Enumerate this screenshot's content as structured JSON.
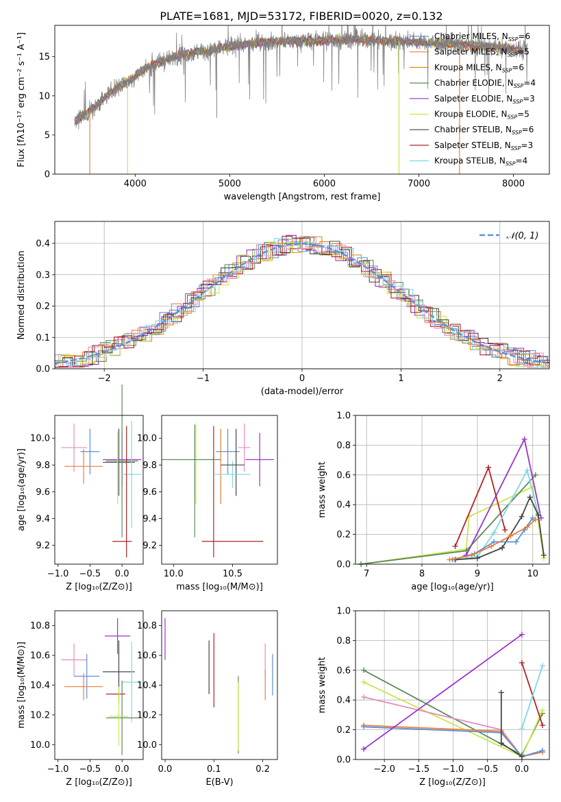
{
  "title": "PLATE=1681, MJD=53172, FIBERID=0020, z=0.132",
  "colors": {
    "Chabrier MILES": "#5b8fd9",
    "Salpeter MILES": "#ee7d37",
    "Kroupa MILES": "#d98f1d",
    "Chabrier ELODIE": "#5a8a5a",
    "Salpeter ELODIE": "#9932cc",
    "Kroupa ELODIE": "#c8e64a",
    "Chabrier STELIB": "#444444",
    "Salpeter STELIB": "#b22222",
    "Kroupa STELIB": "#7fd7e6",
    "extra": "#e48cc0",
    "normal_curve": "#5b8fd9"
  },
  "chart_data": [
    {
      "id": "spectrum",
      "type": "line",
      "title": "PLATE=1681, MJD=53172, FIBERID=0020, z=0.132",
      "xlabel": "wavelength [Angstrom, rest frame]",
      "ylabel": "Flux [fλ10⁻¹⁷ erg cm⁻² s⁻¹ A⁻¹]",
      "xlim": [
        3150,
        8380
      ],
      "ylim": [
        0,
        19
      ],
      "xticks": [
        4000,
        5000,
        6000,
        7000,
        8000
      ],
      "yticks": [
        0,
        5,
        10,
        15
      ],
      "legend_position": "top-right",
      "legend": [
        {
          "name": "Chabrier MILES",
          "nssp": "6"
        },
        {
          "name": "Salpeter MILES",
          "nssp": "5"
        },
        {
          "name": "Kroupa MILES",
          "nssp": "6"
        },
        {
          "name": "Chabrier ELODIE",
          "nssp": "4"
        },
        {
          "name": "Salpeter ELODIE",
          "nssp": "3"
        },
        {
          "name": "Kroupa ELODIE",
          "nssp": "5"
        },
        {
          "name": "Chabrier STELIB",
          "nssp": "6"
        },
        {
          "name": "Salpeter STELIB",
          "nssp": "3"
        },
        {
          "name": "Kroupa STELIB",
          "nssp": "4"
        }
      ],
      "envelope": {
        "x": [
          3360,
          3500,
          3650,
          3800,
          3950,
          4100,
          4300,
          4500,
          4800,
          5100,
          5500,
          5900,
          6300,
          6700,
          7100,
          7500,
          8000,
          8100
        ],
        "y": [
          6.8,
          7.8,
          9.5,
          11.0,
          12.0,
          13.5,
          14.5,
          15.3,
          15.8,
          16.5,
          17.0,
          17.0,
          17.2,
          17.0,
          16.8,
          16.5,
          16.0,
          15.8
        ]
      },
      "model_drops": [
        {
          "series": "Salpeter MILES",
          "x": 3520
        },
        {
          "series": "Kroupa ELODIE",
          "x": 3920
        },
        {
          "series": "Kroupa ELODIE",
          "x": 6790
        },
        {
          "series": "Salpeter MILES",
          "x": 7430
        }
      ]
    },
    {
      "id": "residual_hist",
      "type": "histogram",
      "xlabel": "(data-model)/error",
      "ylabel": "Normed distribution",
      "xlim": [
        -2.5,
        2.5
      ],
      "ylim": [
        0,
        0.47
      ],
      "xticks": [
        -2,
        -1,
        0,
        1,
        2
      ],
      "yticks": [
        0.0,
        0.1,
        0.2,
        0.3,
        0.4
      ],
      "bin_width": 0.1,
      "grid": true,
      "legend_position": "top-right",
      "legend": [
        "𝒩(0, 1)"
      ],
      "normal_mean": 0,
      "normal_sigma": 1
    },
    {
      "id": "age_vs_Z",
      "type": "errorbar",
      "xlabel": "Z [log₁₀(Z/Z⊙)]",
      "ylabel": "age  [log₁₀(age/yr)]",
      "xlim": [
        -1.05,
        0.33
      ],
      "ylim": [
        9.06,
        10.17
      ],
      "xticks": [
        -1.0,
        -0.5,
        0.0
      ],
      "yticks": [
        9.2,
        9.4,
        9.6,
        9.8,
        10.0
      ],
      "points": [
        {
          "series": "extra",
          "x": -0.75,
          "xerr": 0.2,
          "y": 9.93,
          "yerr": 0.18
        },
        {
          "series": "Chabrier MILES",
          "x": -0.5,
          "xerr": 0.15,
          "y": 9.9,
          "yerr": 0.17
        },
        {
          "series": "Salpeter MILES",
          "x": -0.6,
          "xerr": 0.3,
          "y": 9.79,
          "yerr": 0.13
        },
        {
          "series": "Chabrier STELIB",
          "x": -0.05,
          "xerr": 0.25,
          "y": 9.82,
          "yerr": 0.25
        },
        {
          "series": "Salpeter ELODIE",
          "x": 0.0,
          "xerr": 0.3,
          "y": 9.84,
          "yerr": 0.2
        },
        {
          "series": "Chabrier ELODIE",
          "x": 0.0,
          "xerr": 0.25,
          "y": 9.83,
          "yerr": 0.57
        },
        {
          "series": "Kroupa STELIB",
          "x": 0.15,
          "xerr": 0.15,
          "y": 9.73,
          "yerr": 0.4
        },
        {
          "series": "Salpeter STELIB",
          "x": 0.0,
          "xerr": 0.15,
          "y": 9.23,
          "yerr": 0.0
        },
        {
          "series": "Salpeter STELIB",
          "x": 0.07,
          "xerr": 0.0,
          "y": 9.6,
          "yerr": 0.49
        },
        {
          "series": "Kroupa ELODIE",
          "x": -0.07,
          "xerr": 0.0,
          "y": 9.78,
          "yerr": 0.27
        }
      ]
    },
    {
      "id": "age_vs_mass",
      "type": "errorbar",
      "xlabel": "mass [log₁₀(M/M⊙)]",
      "ylabel": "",
      "xlim": [
        9.9,
        10.88
      ],
      "ylim": [
        9.06,
        10.17
      ],
      "xticks": [
        10.0,
        10.5
      ],
      "yticks": [
        9.2,
        9.4,
        9.6,
        9.8,
        10.0
      ],
      "points": [
        {
          "series": "Chabrier ELODIE",
          "x": 10.18,
          "xerr": 0.0,
          "y": 9.68,
          "yerr": 0.42
        },
        {
          "series": "Kroupa ELODIE",
          "x": 10.19,
          "xerr": 0.0,
          "y": 9.81,
          "yerr": 0.3
        },
        {
          "series": "Chabrier MILES",
          "x": 10.46,
          "xerr": 0.1,
          "y": 9.9,
          "yerr": 0.17
        },
        {
          "series": "Salpeter MILES",
          "x": 10.4,
          "xerr": 0.0,
          "y": 9.79,
          "yerr": 0.28
        },
        {
          "series": "extra",
          "x": 10.6,
          "xerr": 0.05,
          "y": 9.93,
          "yerr": 0.18
        },
        {
          "series": "Salpeter ELODIE",
          "x": 10.73,
          "xerr": 0.12,
          "y": 9.84,
          "yerr": 0.2
        },
        {
          "series": "Chabrier STELIB",
          "x": 10.53,
          "xerr": 0.0,
          "y": 9.82,
          "yerr": 0.25
        },
        {
          "series": "Kroupa STELIB",
          "x": 10.5,
          "xerr": 0.15,
          "y": 9.73,
          "yerr": 0.1
        },
        {
          "series": "Salpeter STELIB",
          "x": 10.34,
          "xerr": 0.0,
          "y": 9.6,
          "yerr": 0.49
        },
        {
          "series": "Salpeter STELIB",
          "x": 10.5,
          "xerr": 0.26,
          "y": 9.23,
          "yerr": 0.0
        },
        {
          "series": "Chabrier ELODIE",
          "x": 10.15,
          "xerr": 0.25,
          "y": 9.84,
          "yerr": 0.0
        },
        {
          "series": "Chabrier STELIB",
          "x": 10.5,
          "xerr": 0.1,
          "y": 9.8,
          "yerr": 0.0
        }
      ]
    },
    {
      "id": "weight_vs_age",
      "type": "line",
      "xlabel": "age  [log₁₀(age/yr)]",
      "ylabel": "mass weight",
      "xlim": [
        6.8,
        10.3
      ],
      "ylim": [
        0,
        1.0
      ],
      "xticks": [
        7,
        8,
        9,
        10
      ],
      "yticks": [
        0.0,
        0.2,
        0.4,
        0.6,
        0.8,
        1.0
      ],
      "grid": true,
      "series": [
        {
          "name": "Kroupa ELODIE",
          "x": [
            6.9,
            8.8,
            8.85,
            10.0,
            10.2
          ],
          "y": [
            0.0,
            0.1,
            0.32,
            0.52,
            0.04
          ]
        },
        {
          "name": "Chabrier ELODIE",
          "x": [
            6.9,
            8.8,
            10.05
          ],
          "y": [
            0.0,
            0.09,
            0.6
          ]
        },
        {
          "name": "Salpeter ELODIE",
          "x": [
            8.6,
            8.8,
            9.85,
            10.15
          ],
          "y": [
            0.03,
            0.06,
            0.84,
            0.31
          ]
        },
        {
          "name": "Salpeter STELIB",
          "x": [
            8.6,
            9.2,
            9.5
          ],
          "y": [
            0.12,
            0.65,
            0.23
          ]
        },
        {
          "name": "Kroupa STELIB",
          "x": [
            8.6,
            9.0,
            9.3,
            9.9,
            10.1
          ],
          "y": [
            0.03,
            0.05,
            0.21,
            0.63,
            0.34
          ]
        },
        {
          "name": "Chabrier STELIB",
          "x": [
            8.6,
            9.0,
            9.45,
            9.8,
            9.95,
            10.1,
            10.2
          ],
          "y": [
            0.03,
            0.04,
            0.11,
            0.32,
            0.45,
            0.33,
            0.06
          ]
        },
        {
          "name": "Chabrier MILES",
          "x": [
            8.55,
            8.95,
            9.3,
            9.7,
            9.85,
            10.0
          ],
          "y": [
            0.03,
            0.07,
            0.15,
            0.15,
            0.23,
            0.31
          ]
        },
        {
          "name": "Salpeter MILES",
          "x": [
            8.5,
            8.9,
            9.25,
            9.6,
            9.9,
            10.05
          ],
          "y": [
            0.03,
            0.06,
            0.12,
            0.19,
            0.25,
            0.3
          ]
        }
      ]
    },
    {
      "id": "mass_vs_Z",
      "type": "errorbar",
      "xlabel": "Z [log₁₀(Z/Z⊙)]",
      "ylabel": "mass [log₁₀(M/M⊙)]",
      "xlim": [
        -1.05,
        0.33
      ],
      "ylim": [
        9.9,
        10.9
      ],
      "xticks": [
        -1.0,
        -0.5,
        0.0
      ],
      "yticks": [
        10.0,
        10.2,
        10.4,
        10.6,
        10.8
      ],
      "points": [
        {
          "series": "extra",
          "x": -0.75,
          "xerr": 0.2,
          "y": 10.57,
          "yerr": 0.11
        },
        {
          "series": "Chabrier MILES",
          "x": -0.55,
          "xerr": 0.2,
          "y": 10.46,
          "yerr": 0.15
        },
        {
          "series": "Salpeter MILES",
          "x": -0.6,
          "xerr": 0.3,
          "y": 10.39,
          "yerr": 0.09
        },
        {
          "series": "Salpeter ELODIE",
          "x": -0.07,
          "xerr": 0.2,
          "y": 10.73,
          "yerr": 0.12
        },
        {
          "series": "Chabrier STELIB",
          "x": -0.05,
          "xerr": 0.25,
          "y": 10.49,
          "yerr": 0.21
        },
        {
          "series": "Salpeter STELIB",
          "x": -0.1,
          "xerr": 0.15,
          "y": 10.34,
          "yerr": 0.0
        },
        {
          "series": "Kroupa STELIB",
          "x": 0.15,
          "xerr": 0.15,
          "y": 10.42,
          "yerr": 0.27
        },
        {
          "series": "Chabrier ELODIE",
          "x": 0.0,
          "xerr": 0.25,
          "y": 10.18,
          "yerr": 0.25
        },
        {
          "series": "Kroupa ELODIE",
          "x": -0.05,
          "xerr": 0.15,
          "y": 10.19,
          "yerr": 0.2
        }
      ]
    },
    {
      "id": "mass_vs_ebv",
      "type": "errorbar",
      "xlabel": "E(B-V)",
      "ylabel": "",
      "xlim": [
        -0.007,
        0.23
      ],
      "ylim": [
        9.9,
        10.9
      ],
      "xticks": [
        0.0,
        0.1,
        0.2
      ],
      "yticks": [
        10.0,
        10.2,
        10.4,
        10.6,
        10.8
      ],
      "points": [
        {
          "series": "Salpeter ELODIE",
          "x": 0.0,
          "xerr": 0.0,
          "y": 10.71,
          "yerr": 0.14
        },
        {
          "series": "Chabrier STELIB",
          "x": 0.09,
          "xerr": 0.0,
          "y": 10.52,
          "yerr": 0.18
        },
        {
          "series": "Salpeter STELIB",
          "x": 0.1,
          "xerr": 0.0,
          "y": 10.5,
          "yerr": 0.25
        },
        {
          "series": "Chabrier ELODIE",
          "x": 0.15,
          "xerr": 0.0,
          "y": 10.2,
          "yerr": 0.26
        },
        {
          "series": "Kroupa ELODIE",
          "x": 0.15,
          "xerr": 0.0,
          "y": 10.19,
          "yerr": 0.23
        },
        {
          "series": "extra",
          "x": 0.205,
          "xerr": 0.0,
          "y": 10.57,
          "yerr": 0.11
        },
        {
          "series": "Salpeter MILES",
          "x": 0.205,
          "xerr": 0.0,
          "y": 10.4,
          "yerr": 0.1
        },
        {
          "series": "Chabrier MILES",
          "x": 0.22,
          "xerr": 0.0,
          "y": 10.47,
          "yerr": 0.14
        }
      ]
    },
    {
      "id": "weight_vs_Z",
      "type": "line",
      "xlabel": "Z [log₁₀(Z/Z⊙)]",
      "ylabel": "mass weight",
      "xlim": [
        -2.42,
        0.4
      ],
      "ylim": [
        0,
        1.0
      ],
      "xticks": [
        -2.0,
        -1.5,
        -1.0,
        -0.5,
        0.0
      ],
      "yticks": [
        0.0,
        0.2,
        0.4,
        0.6,
        0.8,
        1.0
      ],
      "grid": true,
      "series": [
        {
          "name": "Chabrier ELODIE",
          "x": [
            -2.3,
            0.0,
            0.3
          ],
          "y": [
            0.6,
            0.03,
            0.31
          ]
        },
        {
          "name": "Kroupa ELODIE",
          "x": [
            -2.3,
            0.0,
            0.3
          ],
          "y": [
            0.52,
            0.02,
            0.33
          ]
        },
        {
          "name": "extra",
          "x": [
            -2.3,
            -0.3,
            0.0
          ],
          "y": [
            0.42,
            0.2,
            0.02
          ]
        },
        {
          "name": "Salpeter MILES",
          "x": [
            -2.3,
            -0.3,
            0.0,
            0.3
          ],
          "y": [
            0.23,
            0.19,
            0.02,
            0.05
          ]
        },
        {
          "name": "Chabrier MILES",
          "x": [
            -2.3,
            -0.3,
            0.0,
            0.3
          ],
          "y": [
            0.22,
            0.18,
            0.02,
            0.06
          ]
        },
        {
          "name": "Salpeter ELODIE",
          "x": [
            -2.3,
            0.0
          ],
          "y": [
            0.07,
            0.84
          ]
        },
        {
          "name": "Salpeter STELIB",
          "x": [
            0.0,
            0.3
          ],
          "y": [
            0.65,
            0.23
          ]
        },
        {
          "name": "Kroupa STELIB",
          "x": [
            0.0,
            0.3
          ],
          "y": [
            0.21,
            0.63
          ]
        },
        {
          "name": "Chabrier STELIB",
          "x": [
            -0.3,
            -0.3,
            0.0
          ],
          "y": [
            0.45,
            0.11,
            0.02
          ]
        }
      ]
    }
  ]
}
